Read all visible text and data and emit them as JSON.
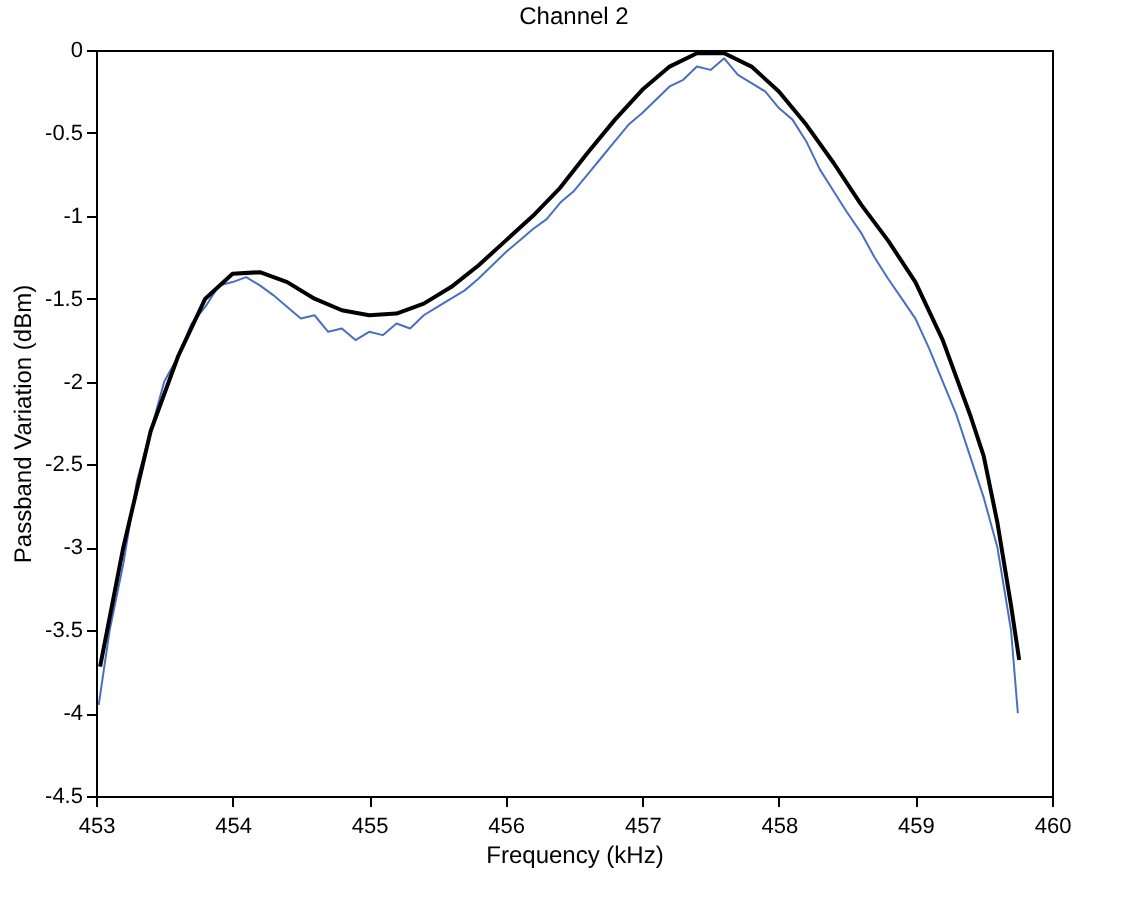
{
  "chart_data": {
    "type": "line",
    "title": "Channel 2",
    "xlabel": "Frequency (kHz)",
    "ylabel": "Passband Variation (dBm)",
    "xlim": [
      453,
      460
    ],
    "ylim": [
      -4.5,
      0
    ],
    "xticks": [
      453,
      454,
      455,
      456,
      457,
      458,
      459,
      460
    ],
    "yticks": [
      -4.5,
      -4,
      -3.5,
      -3,
      -2.5,
      -2,
      -1.5,
      -1,
      -0.5,
      0
    ],
    "marker": "none",
    "line_style": "solid",
    "series": [
      {
        "color": "#4a6fc0",
        "x": [
          453.02,
          453.1,
          453.2,
          453.3,
          453.4,
          453.5,
          453.6,
          453.7,
          453.8,
          453.9,
          454.0,
          454.1,
          454.2,
          454.3,
          454.4,
          454.5,
          454.6,
          454.7,
          454.8,
          454.9,
          455.0,
          455.1,
          455.2,
          455.3,
          455.4,
          455.5,
          455.6,
          455.7,
          455.8,
          455.9,
          456.0,
          456.1,
          456.2,
          456.3,
          456.4,
          456.5,
          456.6,
          456.7,
          456.8,
          456.9,
          457.0,
          457.1,
          457.2,
          457.3,
          457.4,
          457.5,
          457.6,
          457.7,
          457.8,
          457.9,
          458.0,
          458.1,
          458.2,
          458.3,
          458.4,
          458.5,
          458.6,
          458.7,
          458.8,
          458.9,
          459.0,
          459.1,
          459.2,
          459.3,
          459.4,
          459.5,
          459.6,
          459.7,
          459.75
        ],
        "values": [
          -3.95,
          -3.5,
          -3.1,
          -2.6,
          -2.3,
          -2.0,
          -1.85,
          -1.65,
          -1.55,
          -1.42,
          -1.4,
          -1.37,
          -1.42,
          -1.48,
          -1.55,
          -1.62,
          -1.6,
          -1.7,
          -1.68,
          -1.75,
          -1.7,
          -1.72,
          -1.65,
          -1.68,
          -1.6,
          -1.55,
          -1.5,
          -1.45,
          -1.38,
          -1.3,
          -1.22,
          -1.15,
          -1.08,
          -1.02,
          -0.92,
          -0.85,
          -0.75,
          -0.65,
          -0.55,
          -0.45,
          -0.38,
          -0.3,
          -0.22,
          -0.18,
          -0.1,
          -0.12,
          -0.05,
          -0.15,
          -0.2,
          -0.25,
          -0.35,
          -0.42,
          -0.55,
          -0.72,
          -0.85,
          -0.98,
          -1.1,
          -1.25,
          -1.38,
          -1.5,
          -1.62,
          -1.8,
          -2.0,
          -2.2,
          -2.45,
          -2.7,
          -3.0,
          -3.5,
          -4.0
        ]
      },
      {
        "color": "#000000",
        "x": [
          453.03,
          453.2,
          453.4,
          453.6,
          453.8,
          454.0,
          454.2,
          454.4,
          454.6,
          454.8,
          455.0,
          455.2,
          455.4,
          455.6,
          455.8,
          456.0,
          456.2,
          456.4,
          456.6,
          456.8,
          457.0,
          457.2,
          457.4,
          457.6,
          457.8,
          458.0,
          458.2,
          458.4,
          458.6,
          458.8,
          459.0,
          459.2,
          459.4,
          459.5,
          459.6,
          459.7,
          459.76
        ],
        "values": [
          -3.72,
          -3.0,
          -2.3,
          -1.85,
          -1.5,
          -1.35,
          -1.34,
          -1.4,
          -1.5,
          -1.57,
          -1.6,
          -1.59,
          -1.53,
          -1.43,
          -1.3,
          -1.15,
          -1.0,
          -0.83,
          -0.62,
          -0.42,
          -0.24,
          -0.1,
          -0.02,
          -0.02,
          -0.1,
          -0.25,
          -0.45,
          -0.68,
          -0.93,
          -1.15,
          -1.4,
          -1.75,
          -2.2,
          -2.45,
          -2.85,
          -3.35,
          -3.68
        ]
      }
    ]
  }
}
